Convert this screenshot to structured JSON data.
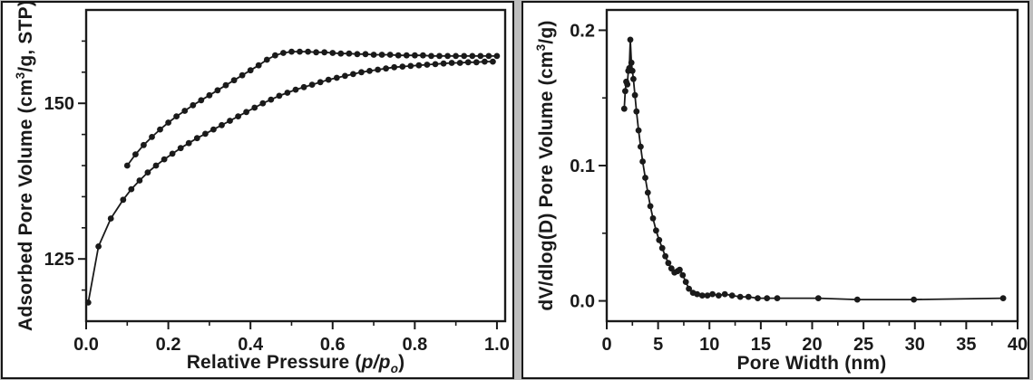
{
  "page": {
    "background": "#bdbdbd",
    "panel_background": "#ffffff",
    "ink_color": "#1a1a1a"
  },
  "chart_data": [
    {
      "type": "line",
      "title": "",
      "xlabel": {
        "text": "Relative Pressure (p/p_o)",
        "main": "Relative Pressure (",
        "italic": "p/p",
        "sub": "o",
        "close": ")"
      },
      "ylabel": {
        "text": "Adsorbed Pore Volume (cm3/g, STP)",
        "main": "Adsorbed Pore Volume (cm",
        "sup": "3",
        "close": "/g, STP)"
      },
      "xlim": [
        0,
        1.02
      ],
      "ylim": [
        115,
        165
      ],
      "grid": false,
      "legend": false,
      "marker": "circle",
      "xticks": {
        "major": [
          0.0,
          0.2,
          0.4,
          0.6,
          0.8,
          1.0
        ],
        "labels": [
          "0.0",
          "0.2",
          "0.4",
          "0.6",
          "0.8",
          "1.0"
        ],
        "minor": [
          0.1,
          0.3,
          0.5,
          0.7,
          0.9
        ]
      },
      "yticks": {
        "major": [
          125,
          150
        ],
        "labels": [
          "125",
          "150"
        ],
        "minor": [
          120,
          130,
          135,
          140,
          145,
          155,
          160
        ]
      },
      "series": [
        {
          "name": "adsorption",
          "x": [
            0.005,
            0.03,
            0.06,
            0.09,
            0.11,
            0.13,
            0.15,
            0.17,
            0.19,
            0.21,
            0.23,
            0.25,
            0.27,
            0.29,
            0.31,
            0.33,
            0.35,
            0.37,
            0.39,
            0.41,
            0.43,
            0.45,
            0.47,
            0.49,
            0.51,
            0.53,
            0.55,
            0.57,
            0.59,
            0.61,
            0.63,
            0.65,
            0.67,
            0.69,
            0.71,
            0.73,
            0.75,
            0.77,
            0.79,
            0.81,
            0.83,
            0.85,
            0.87,
            0.89,
            0.91,
            0.93,
            0.95,
            0.97,
            0.99
          ],
          "y": [
            118,
            127,
            131.5,
            134.5,
            136.2,
            137.6,
            138.9,
            140.0,
            141.0,
            141.9,
            142.8,
            143.6,
            144.4,
            145.1,
            145.8,
            146.5,
            147.2,
            147.9,
            148.6,
            149.3,
            150.0,
            150.6,
            151.2,
            151.7,
            152.2,
            152.6,
            153.0,
            153.4,
            153.8,
            154.1,
            154.4,
            154.7,
            155.0,
            155.2,
            155.4,
            155.6,
            155.8,
            155.9,
            156.0,
            156.1,
            156.2,
            156.3,
            156.4,
            156.5,
            156.5,
            156.6,
            156.6,
            156.7,
            156.7
          ]
        },
        {
          "name": "desorption",
          "x": [
            0.1,
            0.12,
            0.14,
            0.16,
            0.18,
            0.2,
            0.22,
            0.24,
            0.26,
            0.28,
            0.3,
            0.32,
            0.34,
            0.36,
            0.38,
            0.4,
            0.42,
            0.44,
            0.46,
            0.48,
            0.5,
            0.52,
            0.54,
            0.56,
            0.58,
            0.6,
            0.62,
            0.64,
            0.66,
            0.68,
            0.7,
            0.72,
            0.74,
            0.76,
            0.78,
            0.8,
            0.82,
            0.84,
            0.86,
            0.88,
            0.9,
            0.92,
            0.94,
            0.96,
            0.98,
            1.0
          ],
          "y": [
            140,
            141.8,
            143.3,
            144.6,
            145.8,
            146.9,
            147.9,
            148.8,
            149.7,
            150.5,
            151.3,
            152.1,
            152.9,
            153.7,
            154.5,
            155.3,
            156.1,
            157.0,
            157.7,
            158.1,
            158.3,
            158.3,
            158.3,
            158.2,
            158.2,
            158.1,
            158.0,
            158.0,
            157.9,
            157.9,
            157.8,
            157.8,
            157.8,
            157.7,
            157.7,
            157.7,
            157.7,
            157.6,
            157.6,
            157.6,
            157.6,
            157.6,
            157.6,
            157.6,
            157.6,
            157.6
          ]
        }
      ]
    },
    {
      "type": "line",
      "title": "",
      "xlabel": {
        "text": "Pore Width (nm)",
        "main": "Pore Width (nm)",
        "italic": "",
        "sub": "",
        "close": ""
      },
      "ylabel": {
        "text": "dV/dlog(D) Pore Volume (cm3/g)",
        "main": "dV/dlog(D) Pore Volume (cm",
        "sup": "3",
        "close": "/g)"
      },
      "xlim": [
        0,
        40
      ],
      "ylim": [
        -0.015,
        0.215
      ],
      "grid": false,
      "legend": false,
      "marker": "circle",
      "xticks": {
        "major": [
          0,
          5,
          10,
          15,
          20,
          25,
          30,
          35,
          40
        ],
        "labels": [
          "0",
          "5",
          "10",
          "15",
          "20",
          "25",
          "30",
          "35",
          "40"
        ],
        "minor": [
          2.5,
          7.5,
          12.5,
          17.5,
          22.5,
          27.5,
          32.5,
          37.5
        ]
      },
      "yticks": {
        "major": [
          0.0,
          0.1,
          0.2
        ],
        "labels": [
          "0.0",
          "0.1",
          "0.2"
        ],
        "minor": [
          0.05,
          0.15
        ]
      },
      "series": [
        {
          "name": "pore-size-distribution",
          "x": [
            1.7,
            1.8,
            1.9,
            2.0,
            2.1,
            2.2,
            2.3,
            2.4,
            2.5,
            2.6,
            2.75,
            2.9,
            3.1,
            3.3,
            3.5,
            3.75,
            4.0,
            4.25,
            4.5,
            4.8,
            5.1,
            5.4,
            5.7,
            6.0,
            6.3,
            6.6,
            6.9,
            7.1,
            7.4,
            7.7,
            8.0,
            8.4,
            8.8,
            9.3,
            9.8,
            10.3,
            10.9,
            11.5,
            12.2,
            13.0,
            13.8,
            14.7,
            15.6,
            16.6,
            20.6,
            24.4,
            29.9,
            38.6
          ],
          "y": [
            0.142,
            0.155,
            0.162,
            0.16,
            0.17,
            0.172,
            0.193,
            0.176,
            0.17,
            0.164,
            0.152,
            0.14,
            0.126,
            0.114,
            0.103,
            0.091,
            0.08,
            0.07,
            0.061,
            0.052,
            0.045,
            0.039,
            0.033,
            0.028,
            0.024,
            0.021,
            0.022,
            0.023,
            0.019,
            0.014,
            0.009,
            0.006,
            0.005,
            0.004,
            0.004,
            0.005,
            0.004,
            0.005,
            0.004,
            0.003,
            0.003,
            0.002,
            0.002,
            0.002,
            0.002,
            0.001,
            0.001,
            0.002
          ]
        }
      ]
    }
  ]
}
